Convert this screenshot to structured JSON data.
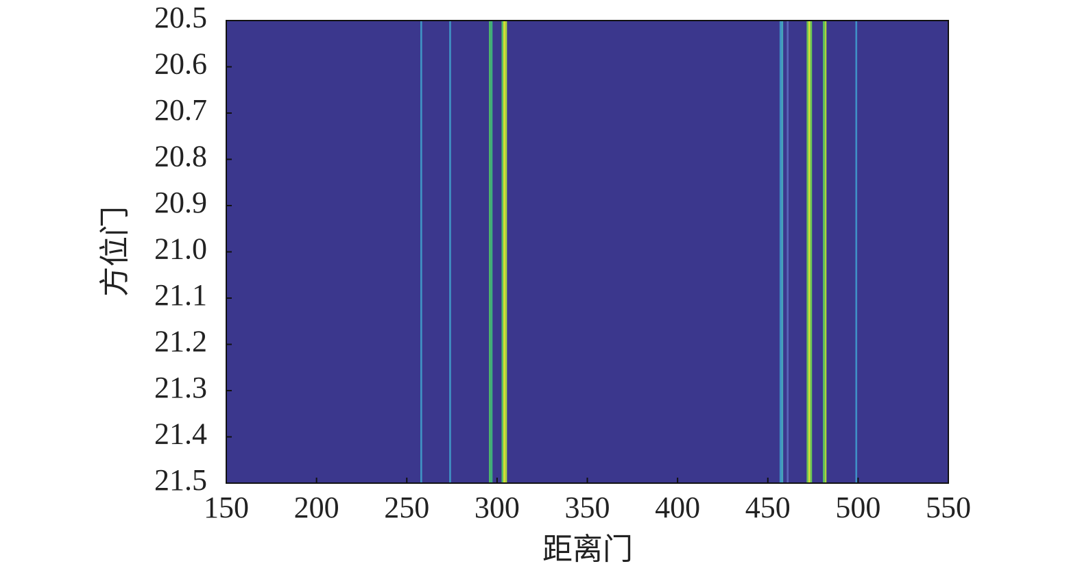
{
  "chart_data": {
    "type": "heatmap",
    "xlabel": "距离门",
    "ylabel": "方位门",
    "xlim": [
      150,
      550
    ],
    "xticks": [
      150,
      200,
      250,
      300,
      350,
      400,
      450,
      500,
      550
    ],
    "ylim": [
      20.5,
      21.5
    ],
    "y_inverted": true,
    "yticks": [
      20.5,
      20.6,
      20.7,
      20.8,
      20.9,
      {
        "value": 21,
        "label": "21.0"
      },
      21.1,
      21.2,
      21.3,
      21.4,
      21.5
    ],
    "background_color": "#3b378d",
    "x": [
      258,
      274,
      296,
      297,
      303,
      304,
      305,
      457,
      458,
      461,
      472,
      473,
      474,
      481,
      482,
      499
    ],
    "colors": [
      "#3f93c4",
      "#3f93c4",
      "#4fb86a",
      "#3fae7c",
      "#57c061",
      "#e3e432",
      "#a9d63a",
      "#3f8fc6",
      "#45a3b8",
      "#5a64b8",
      "#6ec452",
      "#d9e03a",
      "#6ac656",
      "#57c061",
      "#a8d53b",
      "#3f8fc6"
    ]
  }
}
